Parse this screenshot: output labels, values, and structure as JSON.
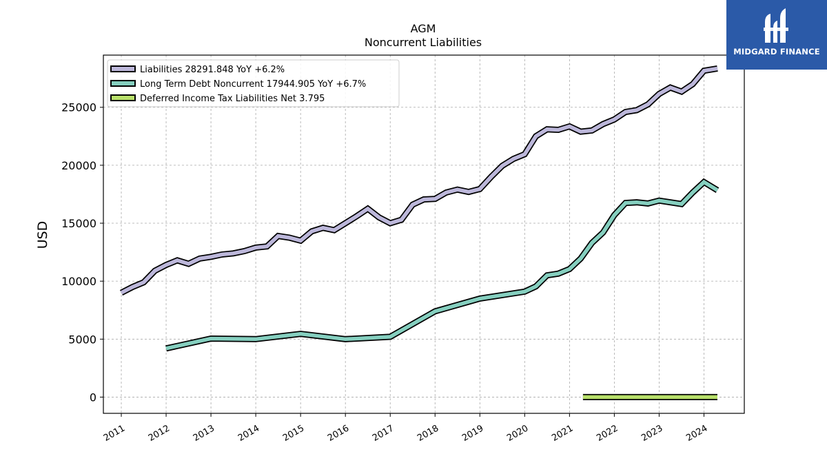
{
  "chart_data": {
    "type": "line",
    "title": "AGM",
    "subtitle": "Noncurrent  Liabilities",
    "ylabel": "USD",
    "xlabel": "",
    "xlim": [
      2010.6,
      2024.9
    ],
    "ylim": [
      -1400,
      29500
    ],
    "yticks": [
      0,
      5000,
      10000,
      15000,
      20000,
      25000
    ],
    "xticks": [
      "2011",
      "2012",
      "2013",
      "2014",
      "2015",
      "2016",
      "2017",
      "2018",
      "2019",
      "2020",
      "2021",
      "2022",
      "2023",
      "2024"
    ],
    "grid": true,
    "legend_position": "top-left",
    "series": [
      {
        "name": "Liabilities",
        "legend_label": "Liabilities  28291.848 YoY +6.2%",
        "color": "#bcb7da",
        "x": [
          2011.0,
          2011.25,
          2011.5,
          2011.75,
          2012.0,
          2012.25,
          2012.5,
          2012.75,
          2013.0,
          2013.25,
          2013.5,
          2013.75,
          2014.0,
          2014.25,
          2014.5,
          2014.75,
          2015.0,
          2015.25,
          2015.5,
          2015.75,
          2016.0,
          2016.25,
          2016.5,
          2016.75,
          2017.0,
          2017.25,
          2017.5,
          2017.75,
          2018.0,
          2018.25,
          2018.5,
          2018.75,
          2019.0,
          2019.25,
          2019.5,
          2019.75,
          2020.0,
          2020.25,
          2020.5,
          2020.75,
          2021.0,
          2021.25,
          2021.5,
          2021.75,
          2022.0,
          2022.25,
          2022.5,
          2022.75,
          2023.0,
          2023.25,
          2023.5,
          2023.75,
          2024.0,
          2024.3
        ],
        "values": [
          9000,
          9500,
          9900,
          10900,
          11400,
          11800,
          11500,
          11950,
          12100,
          12300,
          12400,
          12600,
          12900,
          13000,
          13900,
          13750,
          13500,
          14300,
          14600,
          14400,
          15000,
          15600,
          16250,
          15500,
          15000,
          15300,
          16600,
          17050,
          17100,
          17650,
          17900,
          17700,
          17950,
          19000,
          19950,
          20550,
          20950,
          22500,
          23100,
          23050,
          23350,
          22900,
          23000,
          23550,
          23950,
          24600,
          24750,
          25250,
          26150,
          26700,
          26350,
          27000,
          28150,
          28350
        ]
      },
      {
        "name": "Long Term Debt Noncurrent",
        "legend_label": "Long Term Debt Noncurrent  17944.905 YoY +6.7%",
        "color": "#85cfbf",
        "x": [
          2012.0,
          2013.0,
          2014.0,
          2015.0,
          2016.0,
          2017.0,
          2018.0,
          2019.0,
          2020.0,
          2020.25,
          2020.5,
          2020.75,
          2021.0,
          2021.25,
          2021.5,
          2021.75,
          2022.0,
          2022.25,
          2022.5,
          2022.75,
          2023.0,
          2023.25,
          2023.5,
          2023.75,
          2024.0,
          2024.3
        ],
        "values": [
          4200,
          5050,
          5000,
          5450,
          5000,
          5200,
          7400,
          8500,
          9100,
          9550,
          10500,
          10650,
          11050,
          11950,
          13300,
          14200,
          15700,
          16750,
          16800,
          16700,
          16950,
          16800,
          16650,
          17650,
          18550,
          17850
        ]
      },
      {
        "name": "Deferred Income Tax Liabilities Net",
        "legend_label": "Deferred Income Tax Liabilities Net  3.795",
        "color": "#b8e06a",
        "x": [
          2021.3,
          2024.3
        ],
        "values": [
          3.795,
          3.795
        ]
      }
    ]
  },
  "logo": {
    "text": "MIDGARD FINANCE",
    "background": "#2b5aa8"
  }
}
